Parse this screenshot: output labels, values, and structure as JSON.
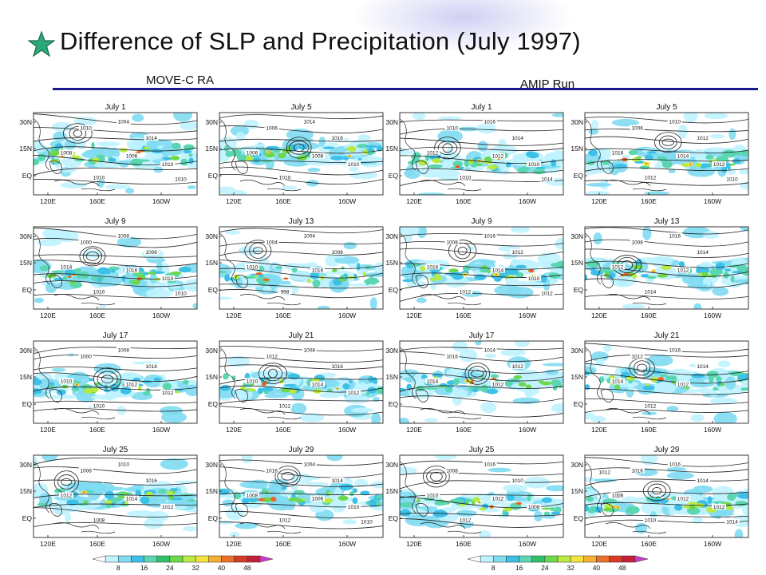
{
  "slide": {
    "title": "Difference of SLP and Precipitation",
    "title_date": "(July 1997)",
    "accent_color": "#1a1a8c",
    "star_color": "#2ea87a"
  },
  "sections": [
    {
      "title": "MOVE-C RA"
    },
    {
      "title": "AMIP Run"
    }
  ],
  "panels": [
    {
      "date": "July 1",
      "contours": [
        "1010",
        "1004",
        "1014",
        "1006",
        "1008",
        "1010",
        "1010",
        "1010"
      ]
    },
    {
      "date": "July 5",
      "contours": [
        "1006",
        "1014",
        "1016",
        "1008",
        "1006",
        "1010",
        "1010"
      ]
    },
    {
      "date": "July 9",
      "contours": [
        "1000",
        "1008",
        "1006",
        "1016",
        "1014",
        "1010",
        "1010",
        "1010"
      ]
    },
    {
      "date": "July 13",
      "contours": [
        "1004",
        "1004",
        "1008",
        "1016",
        "1010",
        "998"
      ]
    },
    {
      "date": "July 17",
      "contours": [
        "1000",
        "1008",
        "1016",
        "1012",
        "1010",
        "1010",
        "1012"
      ]
    },
    {
      "date": "July 21",
      "contours": [
        "1012",
        "1008",
        "1016",
        "1014",
        "1010",
        "1012",
        "1012"
      ]
    },
    {
      "date": "July 25",
      "contours": [
        "1008",
        "1010",
        "1016",
        "1014",
        "1012",
        "1008",
        "1012"
      ]
    },
    {
      "date": "July 29",
      "contours": [
        "1016",
        "1004",
        "1014",
        "1006",
        "1008",
        "1012",
        "1010",
        "1010"
      ]
    },
    {
      "date": "July 1",
      "contours": [
        "1010",
        "1016",
        "1014",
        "1012",
        "1012",
        "1010",
        "1010",
        "1014"
      ]
    },
    {
      "date": "July 5",
      "contours": [
        "1006",
        "1010",
        "1012",
        "1014",
        "1016",
        "1012",
        "1012",
        "1010"
      ]
    },
    {
      "date": "July 9",
      "contours": [
        "1008",
        "1016",
        "1012",
        "1014",
        "1016",
        "1012",
        "1010",
        "1012"
      ]
    },
    {
      "date": "July 13",
      "contours": [
        "1008",
        "1016",
        "1014",
        "1012",
        "1012",
        "1014"
      ]
    },
    {
      "date": "July 17",
      "contours": [
        "1016",
        "1014",
        "1012",
        "1012",
        "1014"
      ]
    },
    {
      "date": "July 21",
      "contours": [
        "1012",
        "1016",
        "1014",
        "1012",
        "1014",
        "1012"
      ]
    },
    {
      "date": "July 25",
      "contours": [
        "1008",
        "1016",
        "1010",
        "1012",
        "1010",
        "1012",
        "1008"
      ]
    },
    {
      "date": "July 29",
      "contours": [
        "1016",
        "1016",
        "1014",
        "1012",
        "1006",
        "1010",
        "1012",
        "1014",
        "1012"
      ]
    }
  ],
  "axis": {
    "lat_labels": [
      "30N",
      "15N",
      "EQ"
    ],
    "lon_labels": [
      "120E",
      "160E",
      "160W"
    ]
  },
  "legend": {
    "ticks": [
      "8",
      "16",
      "24",
      "32",
      "40",
      "48"
    ],
    "colors": [
      "#ffffff",
      "#bff3ff",
      "#7fdcf2",
      "#3cc0e8",
      "#5ad7b0",
      "#2fc06a",
      "#6cd84a",
      "#b8ea40",
      "#f2e43a",
      "#f5b032",
      "#ec7028",
      "#d93a26",
      "#c41e3a",
      "#c83cc8"
    ]
  }
}
